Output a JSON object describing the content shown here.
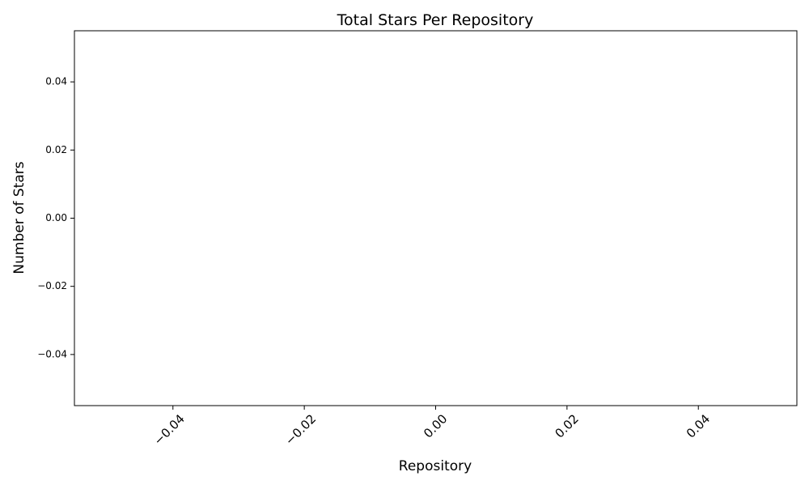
{
  "chart_data": {
    "type": "bar",
    "title": "Total Stars Per Repository",
    "xlabel": "Repository",
    "ylabel": "Number of Stars",
    "categories": [],
    "values": [],
    "xlim": [
      -0.055,
      0.055
    ],
    "ylim": [
      -0.055,
      0.055
    ],
    "xticks": [
      -0.04,
      -0.02,
      0.0,
      0.02,
      0.04
    ],
    "xtick_labels": [
      "−0.04",
      "−0.02",
      "0.00",
      "0.02",
      "0.04"
    ],
    "yticks": [
      0.04,
      0.02,
      0.0,
      -0.02,
      -0.04
    ],
    "ytick_labels": [
      "0.04",
      "0.02",
      "0.00",
      "−0.02",
      "−0.04"
    ],
    "grid": false,
    "legend": "none"
  }
}
